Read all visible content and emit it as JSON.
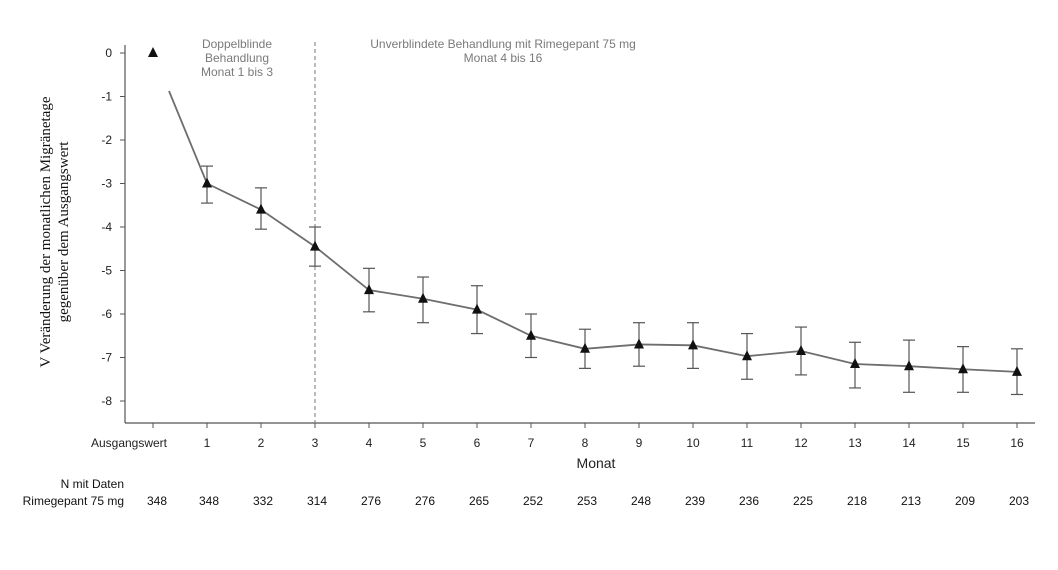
{
  "chart_data": {
    "type": "line",
    "xlabel": "Monat",
    "ylabel_line1": "V Veränderung der monatlichen Migränetage",
    "ylabel_line2": "gegenüber dem Ausgangswert",
    "ylim": [
      -8.5,
      0.2
    ],
    "yticks": [
      0,
      -1,
      -2,
      -3,
      -4,
      -5,
      -6,
      -7,
      -8
    ],
    "x_categories": [
      "Ausgangswert",
      "1",
      "2",
      "3",
      "4",
      "5",
      "6",
      "7",
      "8",
      "9",
      "10",
      "11",
      "12",
      "13",
      "14",
      "15",
      "16"
    ],
    "series": [
      {
        "values": [
          0,
          -3.0,
          -3.6,
          -4.45,
          -5.45,
          -5.65,
          -5.9,
          -6.5,
          -6.8,
          -6.7,
          -6.72,
          -6.97,
          -6.85,
          -7.15,
          -7.2,
          -7.27,
          -7.33
        ],
        "error_lower": [
          null,
          -3.45,
          -4.05,
          -4.9,
          -5.95,
          -6.2,
          -6.45,
          -7.0,
          -7.25,
          -7.2,
          -7.25,
          -7.5,
          -7.4,
          -7.7,
          -7.8,
          -7.8,
          -7.85
        ],
        "error_upper": [
          null,
          -2.6,
          -3.1,
          -4.0,
          -4.95,
          -5.15,
          -5.35,
          -6.0,
          -6.35,
          -6.2,
          -6.2,
          -6.45,
          -6.3,
          -6.65,
          -6.6,
          -6.75,
          -6.8
        ]
      }
    ],
    "annotations": {
      "phase1": [
        "Doppelblinde",
        "Behandlung",
        "Monat 1 bis 3"
      ],
      "phase2": [
        "Unverblindete Behandlung mit Rimegepant 75 mg",
        "Monat 4 bis 16"
      ],
      "divider_at": "3"
    },
    "n_table": {
      "header": "N mit Daten",
      "row_label": "Rimegepant 75 mg",
      "values": [
        "348",
        "348",
        "332",
        "314",
        "276",
        "276",
        "265",
        "252",
        "253",
        "248",
        "239",
        "236",
        "225",
        "218",
        "213",
        "209",
        "203"
      ]
    },
    "colors": {
      "line": "#6e6e6e",
      "marker": "#111111",
      "axis": "#555555",
      "annotation_text": "#7a7a7a"
    }
  }
}
